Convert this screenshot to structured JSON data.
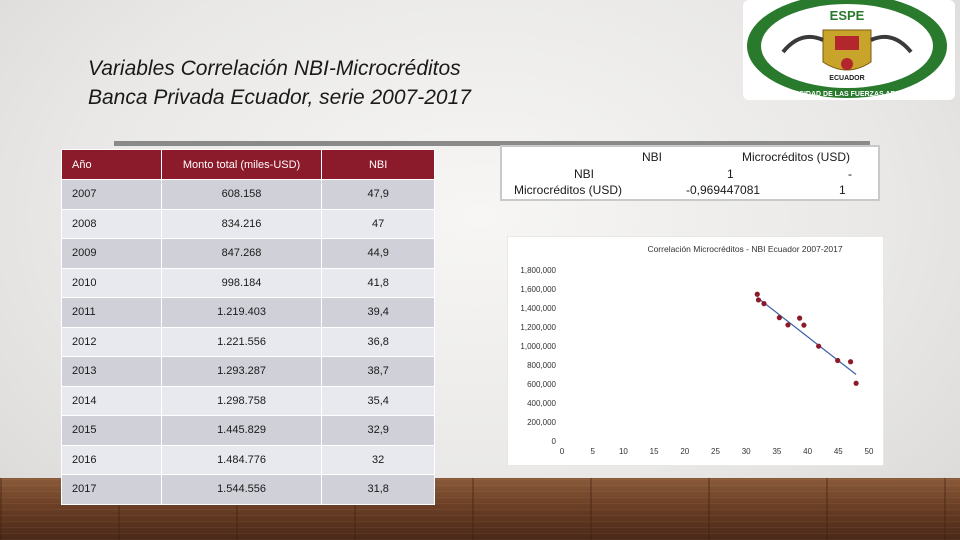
{
  "slide": {
    "title_line1": "Variables Correlación NBI-Microcréditos",
    "title_line2": "Banca Privada Ecuador, serie 2007-2017",
    "logo_text_top": "ESPE",
    "logo_text_bottom": "ECUADOR",
    "logo_ring_text": "UNIVERSIDAD DE LAS FUERZAS ARMADAS"
  },
  "table": {
    "headers": [
      "Año",
      "Monto total (miles-USD)",
      "NBI"
    ],
    "rows": [
      [
        "2007",
        "608.158",
        "47,9"
      ],
      [
        "2008",
        "834.216",
        "47"
      ],
      [
        "2009",
        "847.268",
        "44,9"
      ],
      [
        "2010",
        "998.184",
        "41,8"
      ],
      [
        "2011",
        "1.219.403",
        "39,4"
      ],
      [
        "2012",
        "1.221.556",
        "36,8"
      ],
      [
        "2013",
        "1.293.287",
        "38,7"
      ],
      [
        "2014",
        "1.298.758",
        "35,4"
      ],
      [
        "2015",
        "1.445.829",
        "32,9"
      ],
      [
        "2016",
        "1.484.776",
        "32"
      ],
      [
        "2017",
        "1.544.556",
        "31,8"
      ]
    ]
  },
  "correlation": {
    "col_nbi": "NBI",
    "col_micro": "Microcréditos (USD)",
    "row_nbi": "NBI",
    "row_micro": "Microcréditos (USD)",
    "v11": "1",
    "v12": "-",
    "v21": "-0,969447081",
    "v22": "1"
  },
  "chart_data": {
    "type": "scatter",
    "title": "Correlación Microcréditos - NBI Ecuador 2007-2017",
    "xlabel": "",
    "ylabel": "",
    "x_ticks": [
      "0",
      "5",
      "10",
      "15",
      "20",
      "25",
      "30",
      "35",
      "40",
      "45",
      "50"
    ],
    "y_ticks": [
      "0",
      "200,000",
      "400,000",
      "600,000",
      "800,000",
      "1,000,000",
      "1,200,000",
      "1,400,000",
      "1,600,000",
      "1,800,000"
    ],
    "xlim": [
      0,
      50
    ],
    "ylim": [
      0,
      1800000
    ],
    "points": [
      {
        "x": 47.9,
        "y": 608158
      },
      {
        "x": 47,
        "y": 834216
      },
      {
        "x": 44.9,
        "y": 847268
      },
      {
        "x": 41.8,
        "y": 998184
      },
      {
        "x": 39.4,
        "y": 1219403
      },
      {
        "x": 36.8,
        "y": 1221556
      },
      {
        "x": 38.7,
        "y": 1293287
      },
      {
        "x": 35.4,
        "y": 1298758
      },
      {
        "x": 32.9,
        "y": 1445829
      },
      {
        "x": 32,
        "y": 1484776
      },
      {
        "x": 31.8,
        "y": 1544556
      }
    ],
    "trendline": {
      "x": [
        31.8,
        47.9
      ],
      "y": [
        1510000,
        700000
      ]
    },
    "colors": {
      "point": "#8b1a2a",
      "trend": "#3b5fa8"
    }
  }
}
